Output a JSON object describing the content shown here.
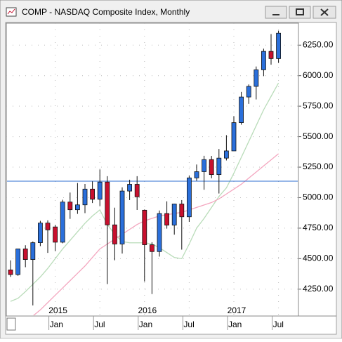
{
  "window_title": "COMP - NASDAQ Composite Index, Monthly",
  "chart_data": {
    "type": "candlestick",
    "categories": [
      null,
      null,
      null,
      null,
      null,
      null,
      "Jan",
      null,
      null,
      null,
      null,
      null,
      "Jul",
      null,
      null,
      null,
      null,
      null,
      "Jan",
      null,
      null,
      null,
      null,
      null,
      "Jul",
      null,
      null,
      null,
      null,
      null,
      "Jan",
      null,
      null,
      null,
      null,
      null,
      "Jul"
    ],
    "category_years": [
      null,
      null,
      null,
      null,
      null,
      null,
      "2015",
      null,
      null,
      null,
      null,
      null,
      null,
      null,
      null,
      null,
      null,
      null,
      "2016",
      null,
      null,
      null,
      null,
      null,
      null,
      null,
      null,
      null,
      null,
      null,
      "2017",
      null,
      null,
      null,
      null,
      null,
      null
    ],
    "open": [
      4408,
      4370,
      4580,
      4493,
      4631,
      4792,
      4760,
      4635,
      4964,
      4901,
      4941,
      5070,
      4987,
      5128,
      4777,
      4620,
      5054,
      5109,
      4897,
      4614,
      4558,
      4870,
      4775,
      4948,
      4843,
      5162,
      5213,
      5312,
      5189,
      5324,
      5383,
      5615,
      5825,
      5912,
      6048,
      6199,
      6140
    ],
    "high": [
      4486,
      4580,
      4610,
      4641,
      4810,
      4814,
      4777,
      4983,
      5042,
      5120,
      5112,
      5133,
      5231,
      5176,
      4918,
      5085,
      5147,
      5176,
      4903,
      4635,
      4895,
      4970,
      4951,
      4980,
      5180,
      5272,
      5343,
      5342,
      5399,
      5512,
      5668,
      5867,
      5928,
      6075,
      6221,
      6341,
      6369
    ],
    "low": [
      4351,
      4359,
      4430,
      4117,
      4603,
      4547,
      4563,
      4626,
      4826,
      4867,
      4873,
      4956,
      4932,
      4292,
      4487,
      4542,
      4980,
      4899,
      4313,
      4210,
      4517,
      4746,
      4697,
      4574,
      4801,
      5138,
      5065,
      5159,
      5034,
      5305,
      5383,
      5598,
      5769,
      5805,
      5996,
      6090,
      6104
    ],
    "close": [
      4370,
      4580,
      4493,
      4631,
      4792,
      4736,
      4635,
      4964,
      4901,
      4941,
      5070,
      4987,
      5128,
      4777,
      4620,
      5054,
      5109,
      5007,
      4614,
      4558,
      4870,
      4775,
      4948,
      4843,
      5162,
      5213,
      5312,
      5189,
      5324,
      5383,
      5615,
      5825,
      5912,
      6048,
      6199,
      6140,
      6348
    ],
    "up_color": "#2a6fdb",
    "down_color": "#c8102e",
    "lines": [
      {
        "color": "#b9dcb9",
        "values": [
          4150,
          4175,
          4230,
          4290,
          4350,
          4420,
          4500,
          4580,
          4650,
          4720,
          4790,
          4850,
          4900,
          4780,
          4700,
          4640,
          4630,
          4630,
          4630,
          4620,
          4590,
          4550,
          4510,
          4500,
          4620,
          4750,
          4830,
          4920,
          5010,
          5080,
          5200,
          5330,
          5460,
          5590,
          5720,
          5830,
          5940
        ]
      },
      {
        "color": "#f4a6bf",
        "values": [
          null,
          null,
          null,
          4030,
          4080,
          4140,
          4200,
          4260,
          4320,
          4380,
          4440,
          4510,
          4580,
          4620,
          4660,
          4700,
          4740,
          4780,
          4810,
          4830,
          4850,
          4860,
          4870,
          4880,
          4900,
          4920,
          4940,
          4960,
          4990,
          5030,
          5070,
          5110,
          5160,
          5210,
          5260,
          5310,
          5360
        ]
      }
    ],
    "hline": {
      "value": 5135,
      "color": "#2f6fd0"
    },
    "ylim": [
      4030,
      6430
    ],
    "yticks": [
      {
        "value": 4250,
        "label": "4250.00"
      },
      {
        "value": 4500,
        "label": "4500.00"
      },
      {
        "value": 4750,
        "label": "4750.00"
      },
      {
        "value": 5000,
        "label": "5000.00"
      },
      {
        "value": 5250,
        "label": "5250.00"
      },
      {
        "value": 5500,
        "label": "5500.00"
      },
      {
        "value": 5750,
        "label": "5750.00"
      },
      {
        "value": 6000,
        "label": "6000.00"
      },
      {
        "value": 6250,
        "label": "6250.00"
      }
    ],
    "grid": true
  }
}
